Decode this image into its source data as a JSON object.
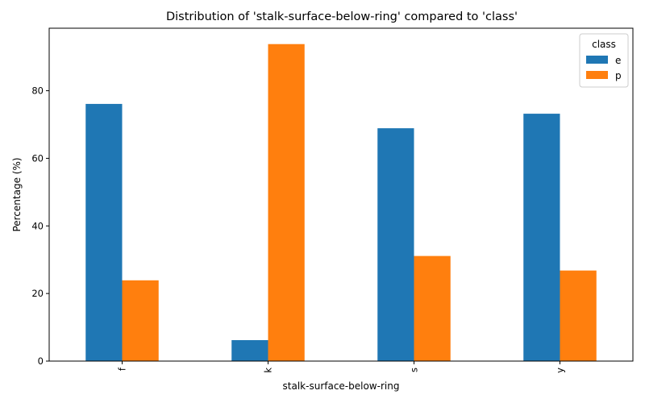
{
  "chart_data": {
    "type": "bar",
    "title": "Distribution of 'stalk-surface-below-ring' compared to 'class'",
    "xlabel": "stalk-surface-below-ring",
    "ylabel": "Percentage (%)",
    "categories": [
      "f",
      "k",
      "s",
      "y"
    ],
    "series": [
      {
        "name": "e",
        "values": [
          76.1,
          6.2,
          68.9,
          73.2
        ],
        "color": "#1f77b4"
      },
      {
        "name": "p",
        "values": [
          23.9,
          93.8,
          31.1,
          26.8
        ],
        "color": "#ff7f0e"
      }
    ],
    "ylim": [
      0,
      98.5
    ],
    "yticks": [
      "0",
      "20",
      "40",
      "60",
      "80"
    ],
    "grid": false,
    "legend": {
      "title": "class",
      "placement": "top-right"
    }
  }
}
